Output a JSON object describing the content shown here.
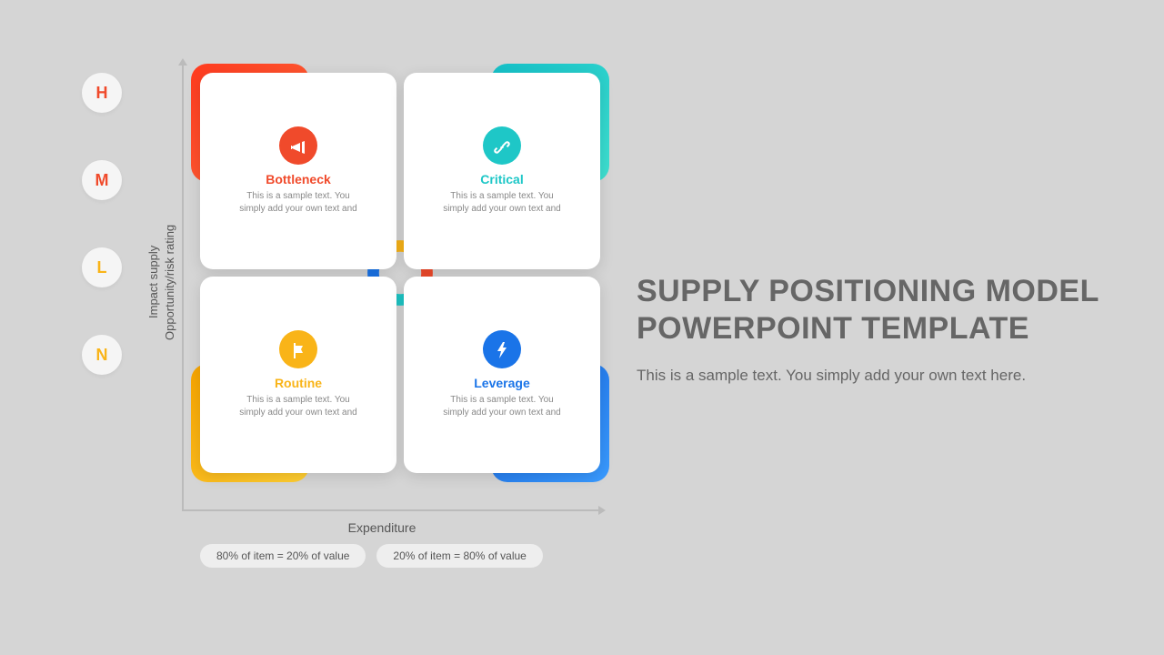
{
  "background_color": "#d5d5d5",
  "title": "SUPPLY POSITIONING MODEL POWERPOINT TEMPLATE",
  "subtitle": "This is a sample text. You simply add your own text here.",
  "title_color": "#666666",
  "y_axis": {
    "label": "Impact supply\nOpportunity/risk rating",
    "badges": [
      {
        "letter": "H",
        "color": "#f04a2b"
      },
      {
        "letter": "M",
        "color": "#f04a2b"
      },
      {
        "letter": "L",
        "color": "#f9b418"
      },
      {
        "letter": "N",
        "color": "#f9b418"
      }
    ]
  },
  "x_axis": {
    "label": "Expenditure",
    "pills": [
      "80% of item = 20% of value",
      "20% of item = 80% of value"
    ]
  },
  "quadrants": [
    {
      "pos": "tl",
      "title": "Bottleneck",
      "color": "#f04a2b",
      "corner_gradient": [
        "#ff3b1f",
        "#ff6a3c"
      ],
      "icon": "megaphone",
      "desc": "This is a sample text. You simply add your own text and"
    },
    {
      "pos": "tr",
      "title": "Critical",
      "color": "#1ec7c7",
      "corner_gradient": [
        "#14c0c8",
        "#3fe0d0"
      ],
      "icon": "link",
      "desc": "This is a sample text. You simply add your own text and"
    },
    {
      "pos": "bl",
      "title": "Routine",
      "color": "#f9b418",
      "corner_gradient": [
        "#f7a400",
        "#ffcf33"
      ],
      "icon": "flag",
      "desc": "This is a sample text. You simply add your own text and"
    },
    {
      "pos": "br",
      "title": "Leverage",
      "color": "#1a74e8",
      "corner_gradient": [
        "#1565e0",
        "#3a9bff"
      ],
      "icon": "bolt",
      "desc": "This is a sample text. You simply add your own text and"
    }
  ],
  "ring_colors": [
    "#f04a2b",
    "#1ec7c7",
    "#1a74e8",
    "#f9b418"
  ],
  "card_bg": "#ffffff",
  "axis_color": "#bbbbbb"
}
